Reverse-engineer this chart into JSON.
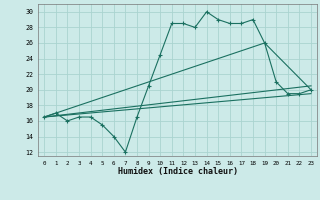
{
  "title": "",
  "xlabel": "Humidex (Indice chaleur)",
  "bg_color": "#cceae8",
  "grid_color": "#aad4d0",
  "line_color": "#1a7060",
  "xlim": [
    -0.5,
    23.5
  ],
  "ylim": [
    11.5,
    31.0
  ],
  "xticks": [
    0,
    1,
    2,
    3,
    4,
    5,
    6,
    7,
    8,
    9,
    10,
    11,
    12,
    13,
    14,
    15,
    16,
    17,
    18,
    19,
    20,
    21,
    22,
    23
  ],
  "yticks": [
    12,
    14,
    16,
    18,
    20,
    22,
    24,
    26,
    28,
    30
  ],
  "series1_x": [
    0,
    1,
    2,
    3,
    4,
    5,
    6,
    7,
    8,
    9,
    10,
    11,
    12,
    13,
    14,
    15,
    16,
    17,
    18,
    19,
    20,
    21,
    22,
    23
  ],
  "series1_y": [
    16.5,
    17.0,
    16.0,
    16.5,
    16.5,
    15.5,
    14.0,
    12.0,
    16.5,
    20.5,
    24.5,
    28.5,
    28.5,
    28.0,
    30.0,
    29.0,
    28.5,
    28.5,
    29.0,
    26.0,
    21.0,
    19.5,
    19.5,
    20.0
  ],
  "series2_x": [
    0,
    23
  ],
  "series2_y": [
    16.5,
    19.5
  ],
  "series3_x": [
    0,
    23
  ],
  "series3_y": [
    16.5,
    20.5
  ],
  "series4_x": [
    0,
    19,
    23
  ],
  "series4_y": [
    16.5,
    26.0,
    20.0
  ]
}
